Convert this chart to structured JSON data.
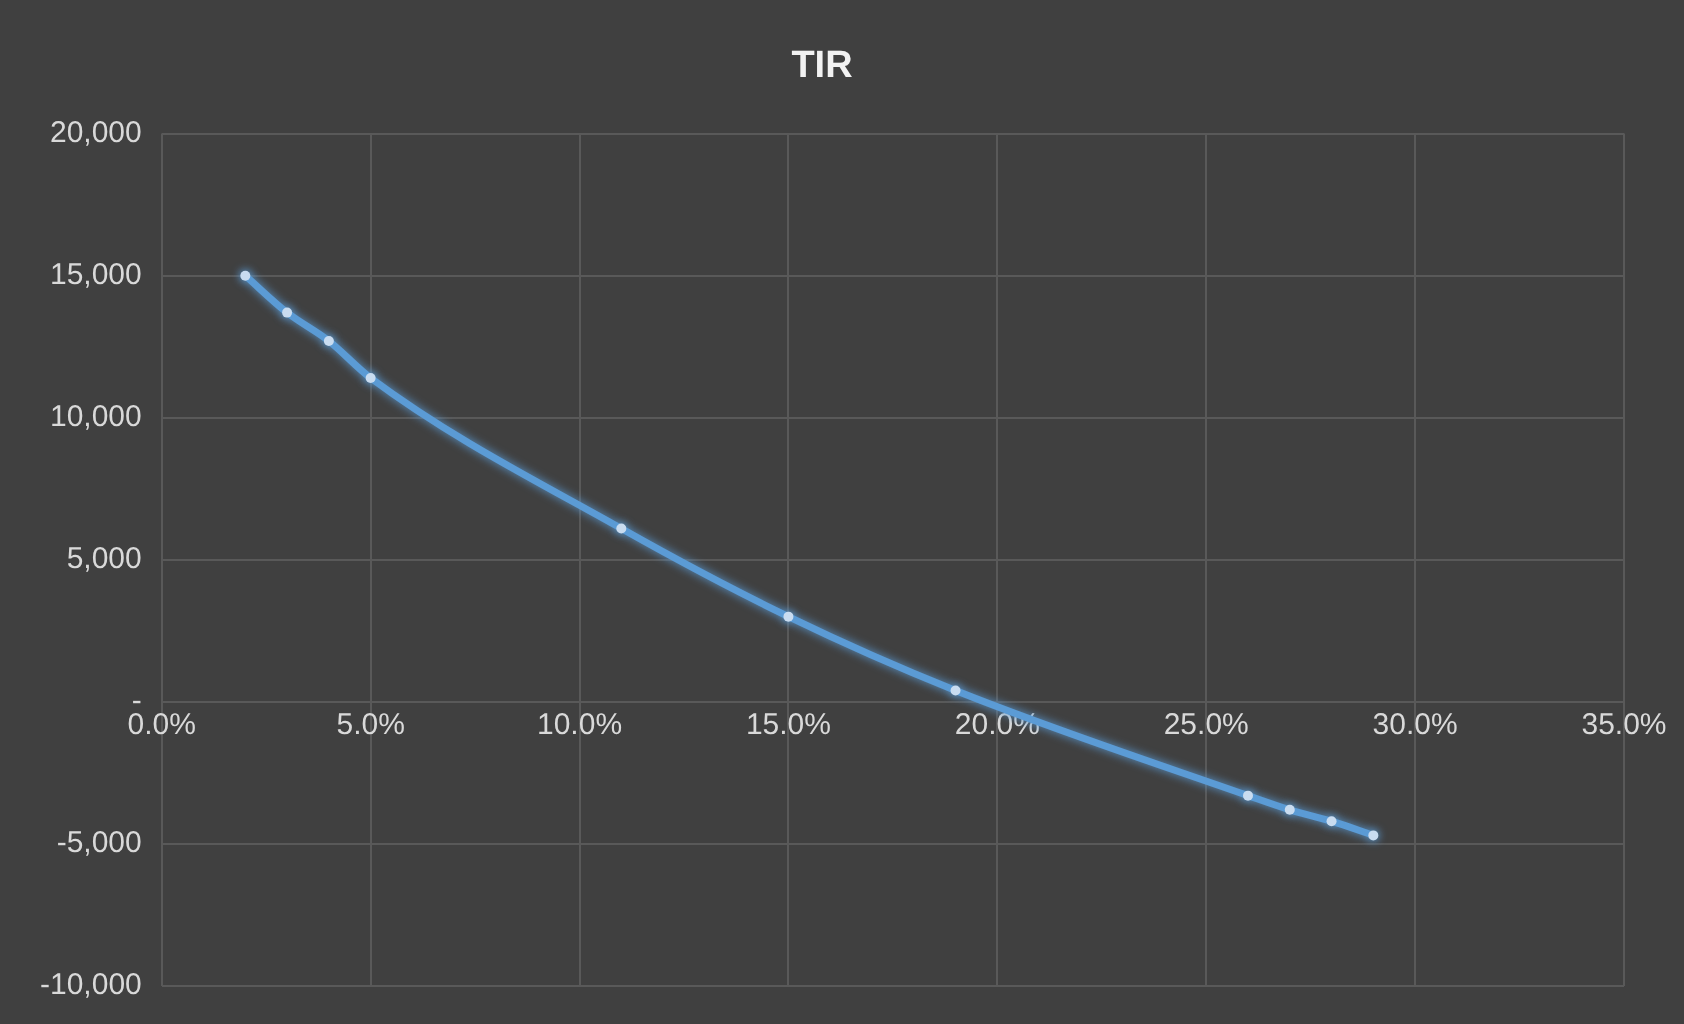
{
  "chart_data": {
    "type": "scatter",
    "title": "TIR",
    "x": [
      2,
      3,
      4,
      5,
      11,
      15,
      19,
      26,
      27,
      28,
      29
    ],
    "series": [
      {
        "type": "line",
        "color": "#5b9bd5",
        "values": [
          15000,
          13700,
          12700,
          11400,
          6100,
          3000,
          400,
          -3300,
          -3800,
          -4200,
          -4700
        ]
      }
    ],
    "xlim": [
      0,
      35
    ],
    "xticks": [
      {
        "value": 0,
        "label": "0.0%"
      },
      {
        "value": 5,
        "label": "5.0%"
      },
      {
        "value": 10,
        "label": "10.0%"
      },
      {
        "value": 15,
        "label": "15.0%"
      },
      {
        "value": 20,
        "label": "20.0%"
      },
      {
        "value": 25,
        "label": "25.0%"
      },
      {
        "value": 30,
        "label": "30.0%"
      },
      {
        "value": 35,
        "label": "35.0%"
      }
    ],
    "ylim": [
      -10000,
      20000
    ],
    "yticks": [
      {
        "value": -10000,
        "label": "-10,000"
      },
      {
        "value": -5000,
        "label": "-5,000"
      },
      {
        "value": 0,
        "label": "-"
      },
      {
        "value": 5000,
        "label": "5,000"
      },
      {
        "value": 10000,
        "label": "10,000"
      },
      {
        "value": 15000,
        "label": "15,000"
      },
      {
        "value": 20000,
        "label": "20,000"
      }
    ],
    "grid": true,
    "legend": false,
    "marker": "circle",
    "line_style": "solid"
  }
}
